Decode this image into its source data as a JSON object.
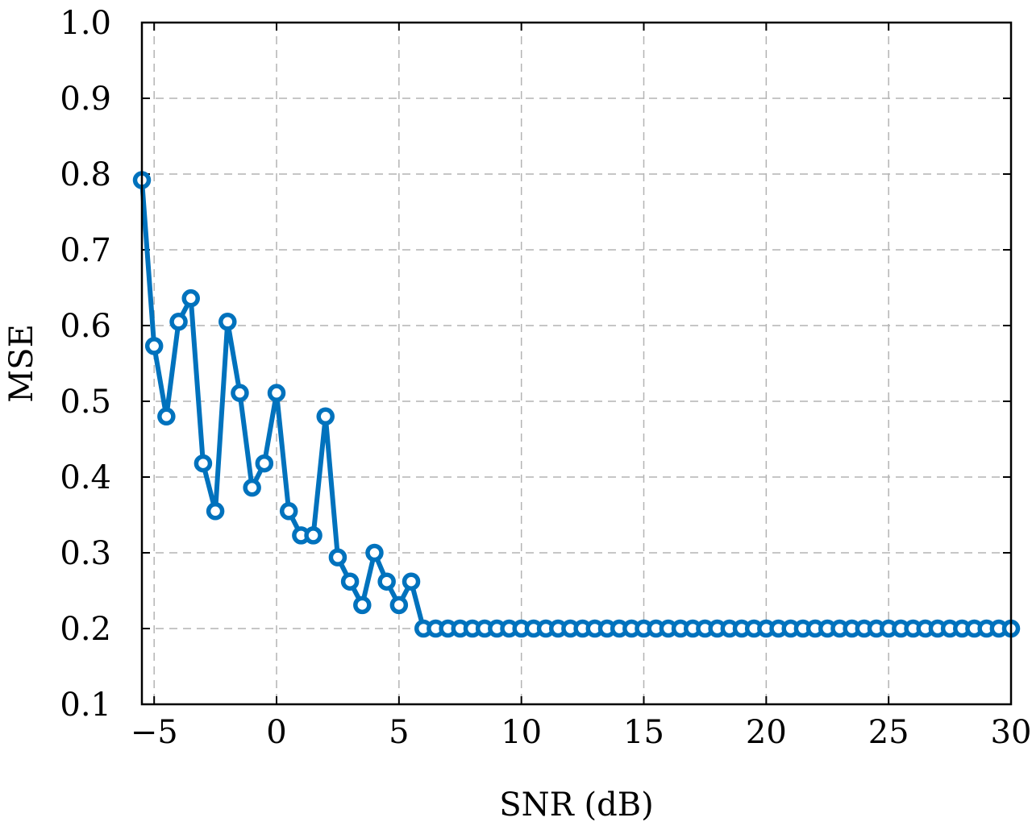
{
  "chart_data": {
    "type": "line",
    "title": "",
    "xlabel": "SNR (dB)",
    "ylabel": "MSE",
    "xlim": [
      -5.5,
      30
    ],
    "ylim": [
      0.1,
      1.0
    ],
    "xticks": [
      -5,
      0,
      5,
      10,
      15,
      20,
      25,
      30
    ],
    "xtick_labels": [
      "−5",
      "0",
      "5",
      "10",
      "15",
      "20",
      "25",
      "30"
    ],
    "yticks": [
      0.1,
      0.2,
      0.3,
      0.4,
      0.5,
      0.6,
      0.7,
      0.8,
      0.9,
      1.0
    ],
    "ytick_labels": [
      "0.1",
      "0.2",
      "0.3",
      "0.4",
      "0.5",
      "0.6",
      "0.7",
      "0.8",
      "0.9",
      "1.0"
    ],
    "grid": true,
    "legend": false,
    "line_color": "#0072bd",
    "marker": "circle",
    "series": [
      {
        "x": [
          -5.5,
          -5,
          -4.5,
          -4,
          -3.5,
          -3,
          -2.5,
          -2,
          -1.5,
          -1,
          -0.5,
          0,
          0.5,
          1,
          1.5,
          2,
          2.5,
          3,
          3.5,
          4,
          4.5,
          5,
          5.5,
          6,
          6.5,
          7,
          7.5,
          8,
          8.5,
          9,
          9.5,
          10,
          10.5,
          11,
          11.5,
          12,
          12.5,
          13,
          13.5,
          14,
          14.5,
          15,
          15.5,
          16,
          16.5,
          17,
          17.5,
          18,
          18.5,
          19,
          19.5,
          20,
          20.5,
          21,
          21.5,
          22,
          22.5,
          23,
          23.5,
          24,
          24.5,
          25,
          25.5,
          26,
          26.5,
          27,
          27.5,
          28,
          28.5,
          29,
          29.5,
          30
        ],
        "values": [
          0.792,
          0.573,
          0.48,
          0.605,
          0.636,
          0.418,
          0.355,
          0.605,
          0.511,
          0.386,
          0.418,
          0.511,
          0.355,
          0.323,
          0.323,
          0.48,
          0.294,
          0.262,
          0.231,
          0.3,
          0.262,
          0.231,
          0.262,
          0.2,
          0.2,
          0.2,
          0.2,
          0.2,
          0.2,
          0.2,
          0.2,
          0.2,
          0.2,
          0.2,
          0.2,
          0.2,
          0.2,
          0.2,
          0.2,
          0.2,
          0.2,
          0.2,
          0.2,
          0.2,
          0.2,
          0.2,
          0.2,
          0.2,
          0.2,
          0.2,
          0.2,
          0.2,
          0.2,
          0.2,
          0.2,
          0.2,
          0.2,
          0.2,
          0.2,
          0.2,
          0.2,
          0.2,
          0.2,
          0.2,
          0.2,
          0.2,
          0.2,
          0.2,
          0.2,
          0.2,
          0.2,
          0.2
        ]
      }
    ]
  }
}
